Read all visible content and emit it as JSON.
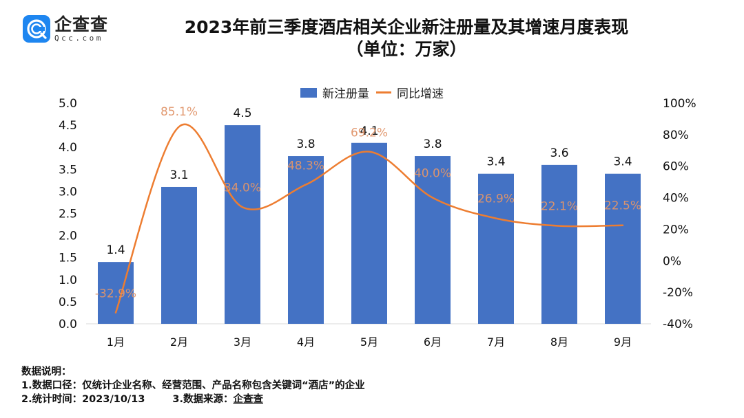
{
  "brand": {
    "name": "企查查",
    "domain": "Qcc.com",
    "color": "#1e86f0"
  },
  "title": {
    "main": "2023年前三季度酒店相关企业新注册量及其增速月度表现",
    "unit": "（单位：万家）"
  },
  "legend": {
    "bar_label": "新注册量",
    "line_label": "同比增速"
  },
  "notes": {
    "heading": "数据说明：",
    "item1": "1.数据口径：仅统计企业名称、经营范围、产品名称包含关键词“酒店”的企业",
    "item2": "2.统计时间：2023/10/13",
    "item3_prefix": "3.数据来源：",
    "item3_source": "企查查"
  },
  "chart_data": {
    "type": "bar",
    "title": "2023年前三季度酒店相关企业新注册量及其增速月度表现（单位：万家）",
    "xlabel": "",
    "ylabel": "",
    "categories": [
      "1月",
      "2月",
      "3月",
      "4月",
      "5月",
      "6月",
      "7月",
      "8月",
      "9月"
    ],
    "series": [
      {
        "name": "新注册量",
        "type": "bar",
        "axis": "left",
        "color": "#4472c4",
        "values": [
          1.4,
          3.1,
          4.5,
          3.8,
          4.1,
          3.8,
          3.4,
          3.6,
          3.4
        ],
        "labels": [
          "1.4",
          "3.1",
          "4.5",
          "3.8",
          "4.1",
          "3.8",
          "3.4",
          "3.6",
          "3.4"
        ]
      },
      {
        "name": "同比增速",
        "type": "line",
        "smooth": true,
        "axis": "right",
        "color": "#ed7d31",
        "values": [
          -32.9,
          85.1,
          34.0,
          48.3,
          69.2,
          40.0,
          26.9,
          22.1,
          22.5
        ],
        "labels": [
          "-32.9%",
          "85.1%",
          "34.0%",
          "48.3%",
          "69.2%",
          "40.0%",
          "26.9%",
          "22.1%",
          "22.5%"
        ]
      }
    ],
    "y_left": {
      "range": [
        0,
        5
      ],
      "ticks": [
        "0.0",
        "0.5",
        "1.0",
        "1.5",
        "2.0",
        "2.5",
        "3.0",
        "3.5",
        "4.0",
        "4.5",
        "5.0"
      ]
    },
    "y_right": {
      "range": [
        -40,
        100
      ],
      "ticks": [
        "-40%",
        "-20%",
        "0%",
        "20%",
        "40%",
        "60%",
        "80%",
        "100%"
      ]
    },
    "grid": false,
    "legend_position": "top-center"
  }
}
